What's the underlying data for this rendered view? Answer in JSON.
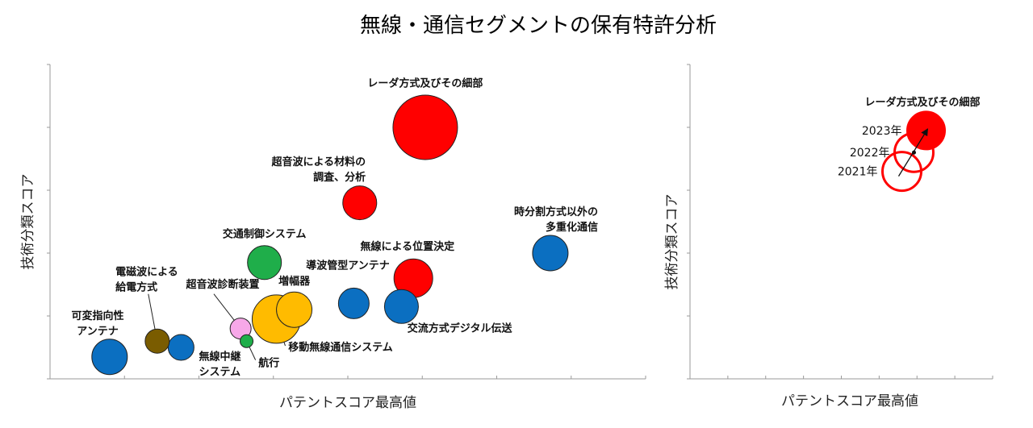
{
  "title": "無線・通信セグメントの保有特許分析",
  "colors": {
    "red": "#ff0000",
    "blue": "#0b6fc1",
    "green": "#1fae4a",
    "yellow": "#ffbb00",
    "olive": "#7a5c00",
    "pink": "#f7a8e8",
    "smallgreen": "#1fae4a"
  },
  "chart_data": [
    {
      "type": "bubble",
      "xlabel": "パテントスコア最高値",
      "ylabel": "技術分類スコア",
      "xlim": [
        0,
        100
      ],
      "ylim": [
        0,
        100
      ],
      "grid": false,
      "points": [
        {
          "name": "レーダ方式及びその細部",
          "label": [
            "レーダ方式及びその細部"
          ],
          "x": 63,
          "y": 80,
          "size": 40,
          "color": "red",
          "label_anchor": "middle",
          "lx": 63,
          "ly": 93
        },
        {
          "name": "超音波による材料の調査、分析",
          "label": [
            "超音波による材料の",
            "調査、分析"
          ],
          "x": 52,
          "y": 56,
          "size": 21,
          "color": "red",
          "label_anchor": "end",
          "lx": 53,
          "ly": 68
        },
        {
          "name": "時分割方式以外の多重化通信",
          "label": [
            "時分割方式以外の",
            "多重化通信"
          ],
          "x": 84,
          "y": 40,
          "size": 22,
          "color": "blue",
          "label_anchor": "end",
          "lx": 92,
          "ly": 52
        },
        {
          "name": "交通制御システム",
          "label": [
            "交通制御システム"
          ],
          "x": 36,
          "y": 37,
          "size": 21,
          "color": "green",
          "label_anchor": "middle",
          "lx": 36,
          "ly": 45
        },
        {
          "name": "無線による位置決定",
          "label": [
            "無線による位置決定"
          ],
          "x": 61,
          "y": 32,
          "size": 24,
          "color": "red",
          "label_anchor": "middle",
          "lx": 60,
          "ly": 41
        },
        {
          "name": "導波管型アンテナ",
          "label": [
            "導波管型アンテナ"
          ],
          "x": 51,
          "y": 24,
          "size": 19,
          "color": "blue",
          "label_anchor": "middle",
          "lx": 50,
          "ly": 35
        },
        {
          "name": "交流方式デジタル伝送",
          "label": [
            "交流方式デジタル伝送"
          ],
          "x": 59,
          "y": 23,
          "size": 21,
          "color": "blue",
          "label_anchor": "start",
          "lx": 60,
          "ly": 15
        },
        {
          "name": "増幅器",
          "label": [
            "増幅器"
          ],
          "x": 41,
          "y": 22,
          "size": 22,
          "color": "yellow",
          "label_anchor": "middle",
          "lx": 41,
          "ly": 30
        },
        {
          "name": "移動無線通信システム",
          "label": [
            "移動無線通信システム"
          ],
          "x": 38,
          "y": 19,
          "size": 30,
          "color": "yellow",
          "label_anchor": "start",
          "lx": 40,
          "ly": 9
        },
        {
          "name": "超音波診断装置",
          "label": [
            "超音波診断装置"
          ],
          "x": 32,
          "y": 16,
          "size": 13,
          "color": "pink",
          "label_anchor": "middle",
          "lx": 29,
          "ly": 29
        },
        {
          "name": "航行",
          "label": [
            "航行"
          ],
          "x": 33,
          "y": 12,
          "size": 8,
          "color": "smallgreen",
          "label_anchor": "start",
          "lx": 35,
          "ly": 4
        },
        {
          "name": "電磁波による給電方式",
          "label": [
            "電磁波による",
            "給電方式"
          ],
          "x": 18,
          "y": 12,
          "size": 15,
          "color": "olive",
          "label_anchor": "start",
          "lx": 11,
          "ly": 33
        },
        {
          "name": "無線中継システム",
          "label": [
            "無線中継",
            "システム"
          ],
          "x": 22,
          "y": 10,
          "size": 16,
          "color": "blue",
          "label_anchor": "start",
          "lx": 25,
          "ly": 6
        },
        {
          "name": "可変指向性アンテナ",
          "label": [
            "可変指向性",
            "アンテナ"
          ],
          "x": 10,
          "y": 7,
          "size": 22,
          "color": "blue",
          "label_anchor": "middle",
          "lx": 8,
          "ly": 19
        }
      ]
    },
    {
      "type": "bubble",
      "xlabel": "パテントスコア最高値",
      "ylabel": "技術分類スコア",
      "xlim": [
        0,
        100
      ],
      "ylim": [
        0,
        100
      ],
      "grid": false,
      "series_title": "レーダ方式及びその細部",
      "points": [
        {
          "year": "2021年",
          "x": 70,
          "y": 66,
          "size": 24,
          "filled": false
        },
        {
          "year": "2022年",
          "x": 74,
          "y": 72,
          "size": 24,
          "filled": false
        },
        {
          "year": "2023年",
          "x": 78,
          "y": 79,
          "size": 24,
          "filled": true
        }
      ]
    }
  ]
}
